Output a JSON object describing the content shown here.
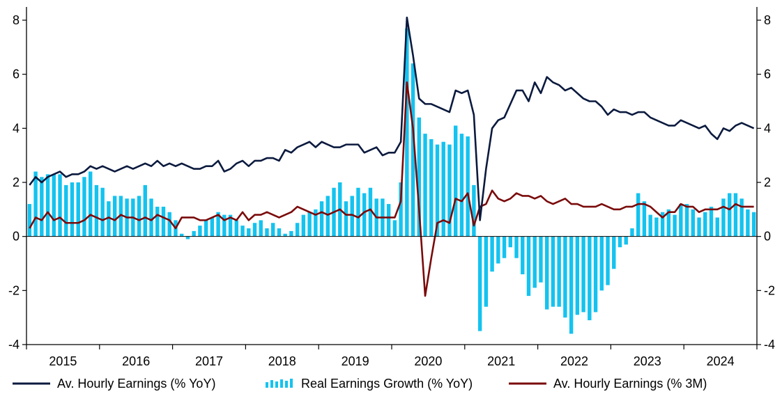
{
  "chart_data": {
    "type": "bar",
    "title": "",
    "xlabel": "",
    "ylabel": "",
    "ylim": [
      -4,
      8
    ],
    "y2lim": [
      -4,
      8
    ],
    "y_ticks": [
      "8",
      "6",
      "4",
      "2",
      "0",
      "-2",
      "-4"
    ],
    "y2_ticks": [
      "8",
      "6",
      "4",
      "2",
      "0",
      "-2",
      "-4"
    ],
    "year_labels": [
      "2015",
      "2016",
      "2017",
      "2018",
      "2019",
      "2020",
      "2021",
      "2022",
      "2023",
      "2024"
    ],
    "x_start": "2015-01",
    "x_end": "2024-12",
    "grid": false,
    "legend_position": "bottom",
    "colors": {
      "ahe_yoy": "#0b1a3e",
      "real_yoy": "#14c3ef",
      "ahe_3m": "#7a0a0a",
      "axis": "#000000"
    },
    "series": [
      {
        "name": "Av. Hourly Earnings (% YoY)",
        "kind": "line",
        "values": [
          1.9,
          2.2,
          2.0,
          2.2,
          2.3,
          2.4,
          2.2,
          2.3,
          2.3,
          2.4,
          2.6,
          2.5,
          2.6,
          2.5,
          2.4,
          2.5,
          2.6,
          2.5,
          2.6,
          2.7,
          2.6,
          2.8,
          2.6,
          2.7,
          2.6,
          2.7,
          2.6,
          2.5,
          2.5,
          2.6,
          2.6,
          2.8,
          2.4,
          2.5,
          2.7,
          2.8,
          2.6,
          2.8,
          2.8,
          2.9,
          2.9,
          2.8,
          3.2,
          3.1,
          3.3,
          3.4,
          3.5,
          3.3,
          3.5,
          3.4,
          3.3,
          3.3,
          3.4,
          3.4,
          3.4,
          3.1,
          3.2,
          3.3,
          3.0,
          3.1,
          3.1,
          3.5,
          8.1,
          6.7,
          5.1,
          4.9,
          4.9,
          4.8,
          4.7,
          4.6,
          5.4,
          5.3,
          5.4,
          4.5,
          0.6,
          2.5,
          4.0,
          4.3,
          4.4,
          4.9,
          5.4,
          5.4,
          5.0,
          5.7,
          5.3,
          5.9,
          5.7,
          5.6,
          5.4,
          5.5,
          5.3,
          5.1,
          5.0,
          5.0,
          4.8,
          4.5,
          4.7,
          4.6,
          4.6,
          4.5,
          4.6,
          4.6,
          4.4,
          4.3,
          4.2,
          4.1,
          4.1,
          4.3,
          4.2,
          4.1,
          4.0,
          4.1,
          3.8,
          3.6,
          4.0,
          3.9,
          4.1,
          4.2,
          4.1,
          4.0
        ]
      },
      {
        "name": "Real Earnings Growth (% YoY)",
        "kind": "bar",
        "values": [
          1.2,
          2.4,
          2.2,
          2.3,
          2.3,
          2.3,
          1.9,
          2.0,
          2.0,
          2.2,
          2.4,
          1.9,
          1.8,
          1.3,
          1.5,
          1.5,
          1.4,
          1.4,
          1.5,
          1.9,
          1.4,
          1.1,
          1.1,
          0.9,
          0.6,
          0.1,
          -0.1,
          0.2,
          0.4,
          0.6,
          0.7,
          0.9,
          0.8,
          0.8,
          0.6,
          0.4,
          0.3,
          0.5,
          0.6,
          0.3,
          0.5,
          0.3,
          0.1,
          0.2,
          0.5,
          0.8,
          0.9,
          1.0,
          1.3,
          1.5,
          1.8,
          2.0,
          1.3,
          1.5,
          1.8,
          1.6,
          1.8,
          1.4,
          1.4,
          1.2,
          0.6,
          2.0,
          7.7,
          6.4,
          4.4,
          3.8,
          3.6,
          3.4,
          3.5,
          3.4,
          4.1,
          3.8,
          3.7,
          1.9,
          -3.5,
          -2.6,
          -1.3,
          -1.0,
          -0.8,
          -0.4,
          -0.8,
          -1.4,
          -2.2,
          -1.9,
          -1.7,
          -2.7,
          -2.6,
          -2.6,
          -3.0,
          -3.6,
          -2.9,
          -2.8,
          -3.1,
          -2.8,
          -2.0,
          -1.8,
          -1.2,
          -0.4,
          -0.3,
          0.3,
          1.6,
          1.3,
          0.8,
          0.7,
          0.9,
          1.0,
          0.8,
          1.2,
          1.2,
          1.0,
          0.7,
          0.9,
          1.1,
          0.7,
          1.4,
          1.6,
          1.6,
          1.4,
          1.0,
          0.9
        ]
      },
      {
        "name": "Av. Hourly Earnings (% 3M)",
        "kind": "line",
        "values": [
          0.3,
          0.7,
          0.6,
          0.9,
          0.6,
          0.7,
          0.5,
          0.5,
          0.5,
          0.6,
          0.8,
          0.7,
          0.6,
          0.7,
          0.6,
          0.8,
          0.7,
          0.7,
          0.6,
          0.7,
          0.6,
          0.8,
          0.7,
          0.6,
          0.3,
          0.7,
          0.7,
          0.7,
          0.6,
          0.6,
          0.7,
          0.8,
          0.6,
          0.7,
          0.6,
          0.9,
          0.6,
          0.8,
          0.8,
          0.9,
          0.8,
          0.7,
          0.8,
          0.9,
          1.1,
          1.0,
          0.9,
          0.8,
          0.9,
          0.8,
          0.9,
          1.0,
          0.8,
          0.8,
          0.7,
          0.9,
          1.0,
          0.7,
          0.7,
          0.7,
          0.7,
          1.3,
          5.7,
          4.0,
          1.0,
          -2.2,
          -0.8,
          0.5,
          0.6,
          0.5,
          1.4,
          1.3,
          1.6,
          0.4,
          1.1,
          1.2,
          1.7,
          1.4,
          1.3,
          1.4,
          1.6,
          1.5,
          1.5,
          1.4,
          1.5,
          1.3,
          1.2,
          1.3,
          1.4,
          1.2,
          1.2,
          1.1,
          1.1,
          1.1,
          1.2,
          1.1,
          1.0,
          1.0,
          1.1,
          1.1,
          1.2,
          1.2,
          1.1,
          0.9,
          0.7,
          0.9,
          0.9,
          1.2,
          1.1,
          1.1,
          0.9,
          1.0,
          1.0,
          1.0,
          1.1,
          1.0,
          1.2,
          1.1,
          1.1,
          1.1
        ]
      }
    ]
  }
}
